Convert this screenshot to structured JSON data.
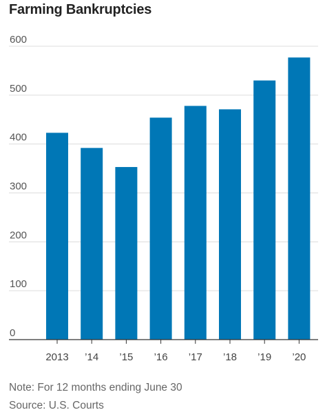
{
  "chart_data": {
    "type": "bar",
    "title": "Farming Bankruptcies",
    "categories": [
      "2013",
      "’14",
      "’15",
      "’16",
      "’17",
      "’18",
      "’19",
      "’20"
    ],
    "series": [
      {
        "values": [
          423,
          392,
          353,
          454,
          478,
          471,
          530,
          577
        ]
      }
    ],
    "yticks": [
      0,
      100,
      200,
      300,
      400,
      500,
      600
    ],
    "ylim": [
      0,
      600
    ],
    "xlabel": "",
    "ylabel": "",
    "grid": true,
    "bar_color": "#0077b6"
  },
  "footer": {
    "note": "Note: For 12 months ending June 30",
    "source": "Source: U.S. Courts"
  }
}
